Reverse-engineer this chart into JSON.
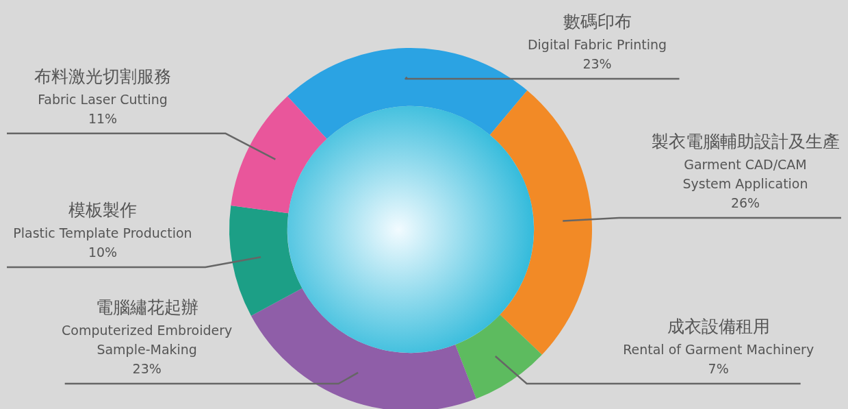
{
  "chart_data": {
    "type": "donut",
    "categories": [
      "數碼印布\nDigital Fabric Printing",
      "製衣電腦輔助設計及生產\nGarment CAD/CAM\nSystem Application",
      "成衣設備租用\nRental of Garment Machinery",
      "電腦繡花起辦\nComputerized Embroidery\nSample-Making",
      "模板製作\nPlastic Template Production",
      "布料激光切割服務\nFabric Laser Cutting"
    ],
    "values": [
      23,
      26,
      7,
      23,
      10,
      11
    ],
    "colors": [
      "#2ba3e3",
      "#f28a26",
      "#5dbb5f",
      "#8f5ea8",
      "#1c9f86",
      "#e9569b"
    ],
    "value_labels": [
      "23%",
      "26%",
      "7%",
      "23%",
      "10%",
      "11%"
    ]
  }
}
